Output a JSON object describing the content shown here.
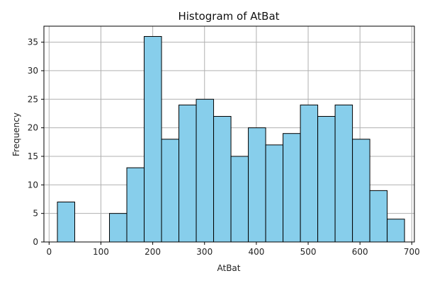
{
  "chart_data": {
    "type": "bar",
    "title": "Histogram of AtBat",
    "xlabel": "AtBat",
    "ylabel": "Frequency",
    "bin_start": 16,
    "bin_width": 33.5,
    "values": [
      7,
      0,
      0,
      5,
      13,
      36,
      18,
      24,
      25,
      22,
      15,
      20,
      17,
      19,
      24,
      22,
      24,
      18,
      9,
      4
    ],
    "xlim": [
      -10,
      705
    ],
    "ylim": [
      0,
      37.8
    ],
    "xticks": [
      0,
      100,
      200,
      300,
      400,
      500,
      600,
      700
    ],
    "yticks": [
      0,
      5,
      10,
      15,
      20,
      25,
      30,
      35
    ],
    "grid": true,
    "bar_color": "#87CEEB",
    "edge_color": "#000000",
    "grid_color": "#b0b0b0"
  }
}
